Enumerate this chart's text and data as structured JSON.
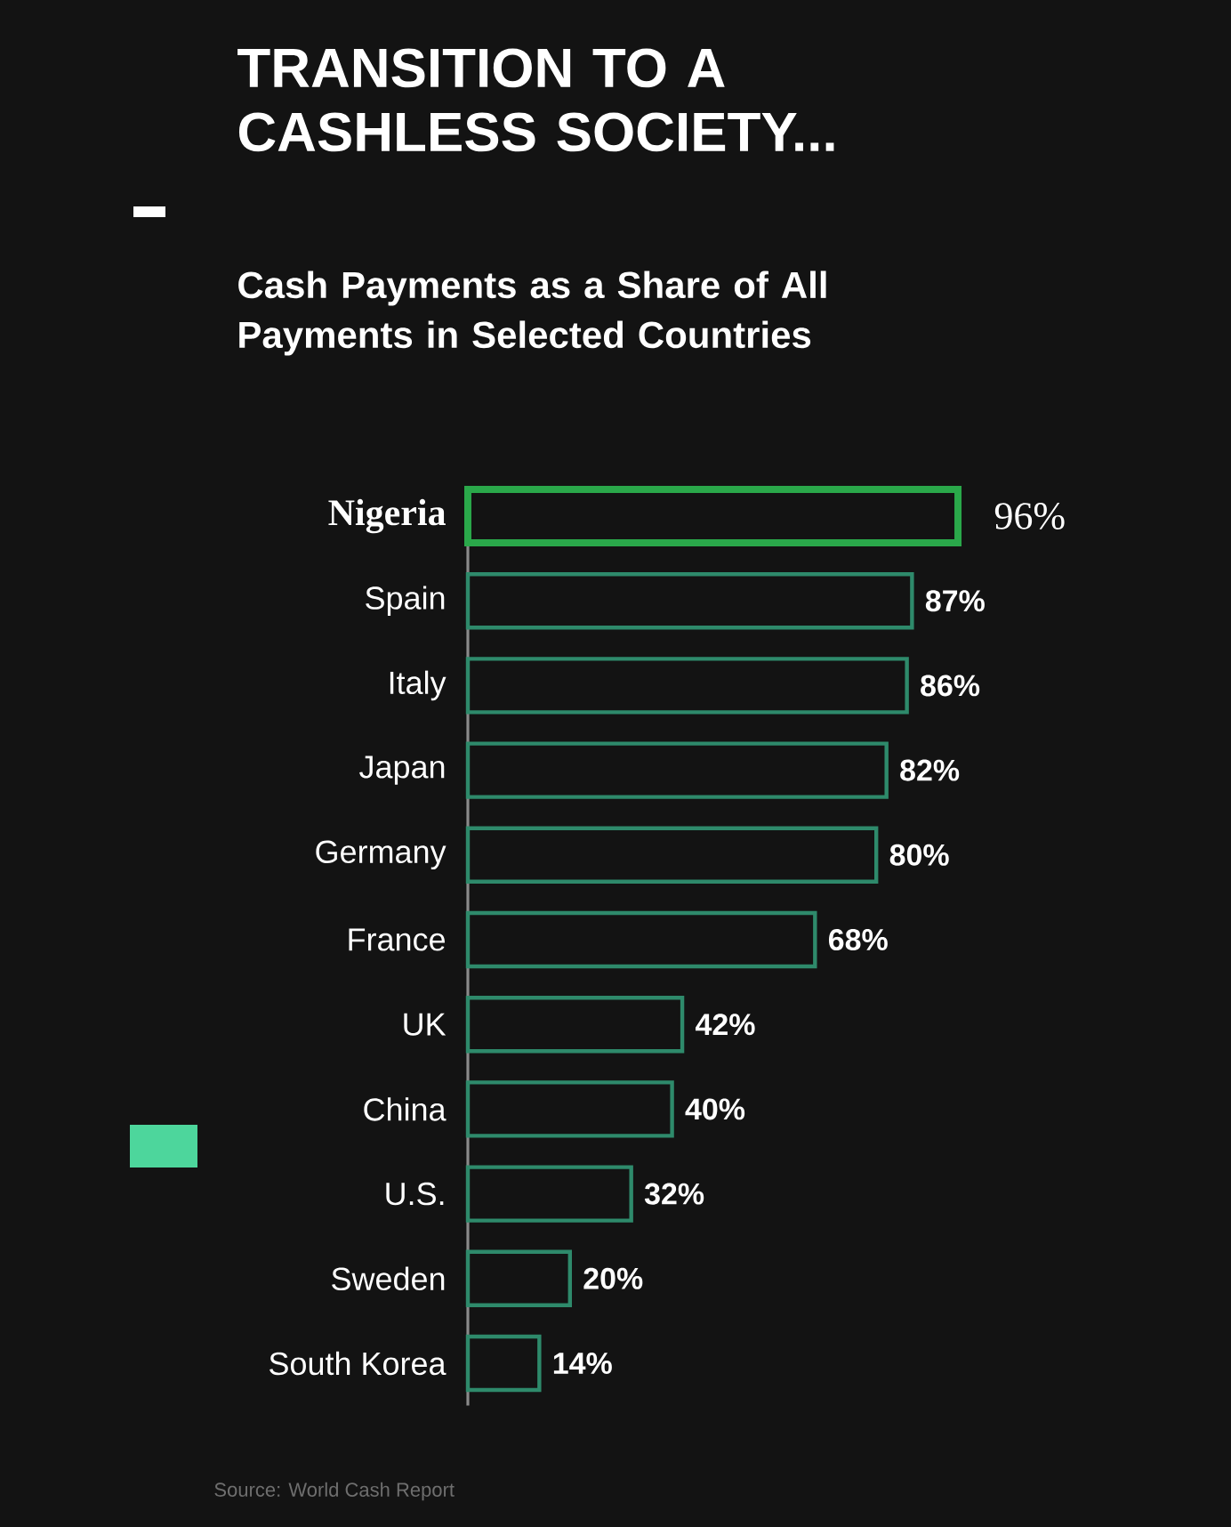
{
  "chart_data": {
    "type": "bar",
    "orientation": "horizontal",
    "title": "TRANSITION TO A CASHLESS SOCIETY...",
    "subtitle": "Cash Payments as a Share of All Payments in Selected Countries",
    "categories": [
      "Nigeria",
      "Spain",
      "Italy",
      "Japan",
      "Germany",
      "France",
      "UK",
      "China",
      "U.S.",
      "Sweden",
      "South Korea"
    ],
    "values": [
      96,
      87,
      86,
      82,
      80,
      68,
      42,
      40,
      32,
      20,
      14
    ],
    "colors": [
      "#2aa84a",
      "#2e8a6b",
      "#2e8a6b",
      "#2e8a6b",
      "#2e8a6b",
      "#2e8a6b",
      "#2e8a6b",
      "#2e8a6b",
      "#2e8a6b",
      "#2e8a6b",
      "#2e8a6b"
    ],
    "value_labels": [
      "96%",
      "87%",
      "86%",
      "82%",
      "80%",
      "68%",
      "42%",
      "40%",
      "32%",
      "20%",
      "14%"
    ],
    "tick_labels": "y",
    "annotations": [
      "Source: World Cash Report"
    ]
  }
}
